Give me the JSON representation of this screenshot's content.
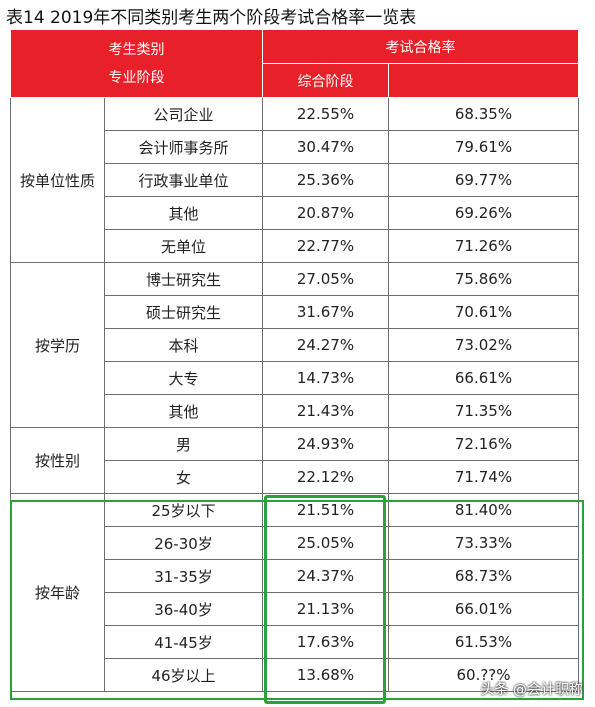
{
  "title": "表14  2019年不同类别考生两个阶段考试合格率一览表",
  "header": {
    "category_line1": "考生类别",
    "category_line2": "专业阶段",
    "pass_rate": "考试合格率",
    "stage_comprehensive": "综合阶段",
    "stage_professional": ""
  },
  "groups": [
    {
      "label": "按单位性质",
      "rows": [
        {
          "sub": "公司企业",
          "comprehensive": "22.55%",
          "professional": "68.35%"
        },
        {
          "sub": "会计师事务所",
          "comprehensive": "30.47%",
          "professional": "79.61%"
        },
        {
          "sub": "行政事业单位",
          "comprehensive": "25.36%",
          "professional": "69.77%"
        },
        {
          "sub": "其他",
          "comprehensive": "20.87%",
          "professional": "69.26%"
        },
        {
          "sub": "无单位",
          "comprehensive": "22.77%",
          "professional": "71.26%"
        }
      ]
    },
    {
      "label": "按学历",
      "rows": [
        {
          "sub": "博士研究生",
          "comprehensive": "27.05%",
          "professional": "75.86%"
        },
        {
          "sub": "硕士研究生",
          "comprehensive": "31.67%",
          "professional": "70.61%"
        },
        {
          "sub": "本科",
          "comprehensive": "24.27%",
          "professional": "73.02%"
        },
        {
          "sub": "大专",
          "comprehensive": "14.73%",
          "professional": "66.61%"
        },
        {
          "sub": "其他",
          "comprehensive": "21.43%",
          "professional": "71.35%"
        }
      ]
    },
    {
      "label": "按性别",
      "rows": [
        {
          "sub": "男",
          "comprehensive": "24.93%",
          "professional": "72.16%"
        },
        {
          "sub": "女",
          "comprehensive": "22.12%",
          "professional": "71.74%"
        }
      ]
    },
    {
      "label": "按年龄",
      "rows": [
        {
          "sub": "25岁以下",
          "comprehensive": "21.51%",
          "professional": "81.40%"
        },
        {
          "sub": "26-30岁",
          "comprehensive": "25.05%",
          "professional": "73.33%"
        },
        {
          "sub": "31-35岁",
          "comprehensive": "24.37%",
          "professional": "68.73%"
        },
        {
          "sub": "36-40岁",
          "comprehensive": "21.13%",
          "professional": "66.01%"
        },
        {
          "sub": "41-45岁",
          "comprehensive": "17.63%",
          "professional": "61.53%"
        },
        {
          "sub": "46岁以上",
          "comprehensive": "13.68%",
          "professional": "60.??%"
        }
      ]
    }
  ],
  "watermark": "头条 @会计职称",
  "colors": {
    "header_bg": "#e8202a",
    "highlight": "#2aa13a"
  }
}
